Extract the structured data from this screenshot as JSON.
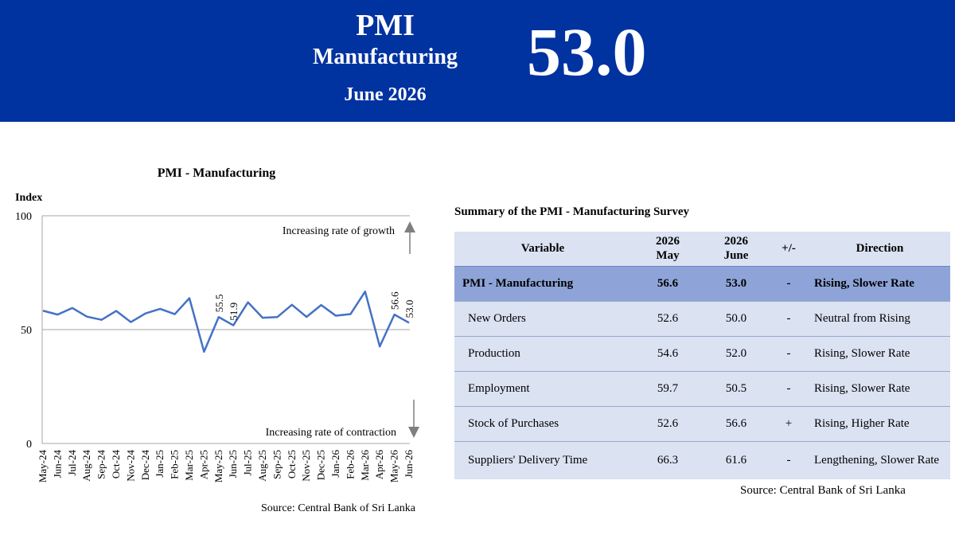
{
  "header": {
    "title": "PMI",
    "subtitle": "Manufacturing",
    "period": "June 2026",
    "value": "53.0",
    "bg_color": "#0032a0"
  },
  "chart_data": {
    "type": "line",
    "title": "PMI - Manufacturing",
    "ylabel": "Index",
    "ylim": [
      0,
      100
    ],
    "yticks": [
      0,
      50,
      100
    ],
    "grid": "horizontal",
    "categories": [
      "May-24",
      "Jun-24",
      "Jul-24",
      "Aug-24",
      "Sep-24",
      "Oct-24",
      "Nov-24",
      "Dec-24",
      "Jan-25",
      "Feb-25",
      "Mar-25",
      "Apr-25",
      "May-25",
      "Jun-25",
      "Jul-25",
      "Aug-25",
      "Sep-25",
      "Oct-25",
      "Nov-25",
      "Dec-25",
      "Jan-26",
      "Feb-26",
      "Mar-26",
      "Apr-26",
      "May-26",
      "Jun-26"
    ],
    "series": [
      {
        "values": [
          58.3,
          56.6,
          59.5,
          55.7,
          54.3,
          58.2,
          53.3,
          57.1,
          59.1,
          56.8,
          63.8,
          40.3,
          55.5,
          51.9,
          62.0,
          55.2,
          55.5,
          60.9,
          55.6,
          60.8,
          56.1,
          56.8,
          66.7,
          42.6,
          56.6,
          53.0
        ],
        "color": "#4472c4"
      }
    ],
    "data_labels": [
      {
        "index": 12,
        "text": "55.5"
      },
      {
        "index": 13,
        "text": "51.9"
      },
      {
        "index": 24,
        "text": "56.6"
      },
      {
        "index": 25,
        "text": "53.0"
      }
    ],
    "annotations": {
      "growth": "Increasing rate of growth",
      "contraction": "Increasing rate of contraction"
    },
    "source": "Source: Central Bank of Sri Lanka"
  },
  "summary": {
    "title": "Summary of the PMI - Manufacturing Survey",
    "headers": {
      "variable": "Variable",
      "may_year": "2026",
      "may_month": "May",
      "jun_year": "2026",
      "jun_month": "June",
      "change": "+/-",
      "direction": "Direction"
    },
    "rows": [
      {
        "variable": "PMI - Manufacturing",
        "may": "56.6",
        "june": "53.0",
        "change": "-",
        "direction": "Rising, Slower Rate"
      },
      {
        "variable": "New Orders",
        "may": "52.6",
        "june": "50.0",
        "change": "-",
        "direction": "Neutral from Rising"
      },
      {
        "variable": "Production",
        "may": "54.6",
        "june": "52.0",
        "change": "-",
        "direction": "Rising, Slower Rate"
      },
      {
        "variable": "Employment",
        "may": "59.7",
        "june": "50.5",
        "change": "-",
        "direction": "Rising, Slower Rate"
      },
      {
        "variable": "Stock of Purchases",
        "may": "52.6",
        "june": "56.6",
        "change": "+",
        "direction": "Rising, Higher Rate"
      },
      {
        "variable": "Suppliers' Delivery Time",
        "may": "66.3",
        "june": "61.6",
        "change": "-",
        "direction": "Lengthening, Slower Rate"
      }
    ],
    "source": "Source: Central Bank of Sri Lanka"
  }
}
